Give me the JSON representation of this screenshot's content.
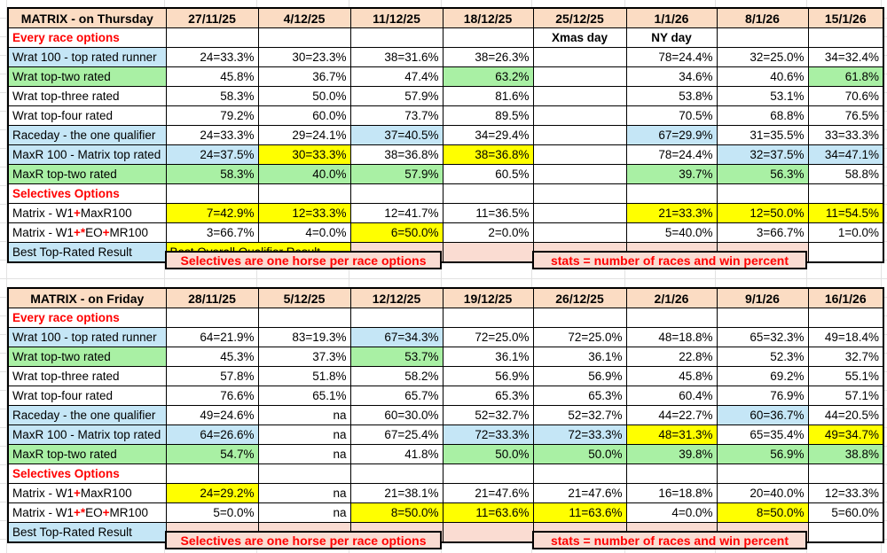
{
  "colors": {
    "peach": "#fbdcc3",
    "pink": "#fadcd2",
    "blue": "#c5e6f6",
    "green": "#a9f0a4",
    "yellow": "#ffff00",
    "red": "#ff0000",
    "grid": "#e2e2e2"
  },
  "tables": [
    {
      "title": "MATRIX - on Thursday",
      "dates": [
        "27/11/25",
        "4/12/25",
        "11/12/25",
        "18/12/25",
        "25/12/25",
        "1/1/26",
        "8/1/26",
        "15/1/26"
      ],
      "rows": [
        {
          "type": "section",
          "label": [
            {
              "t": "Every race options",
              "c": "red"
            }
          ],
          "cells": [
            {},
            {},
            {},
            {},
            {
              "t": "Xmas day",
              "bold": true
            },
            {
              "t": "NY day",
              "bold": true
            },
            {},
            {}
          ]
        },
        {
          "type": "data",
          "labelBg": "blue",
          "label": [
            {
              "t": "Wrat 100 - top rated runner"
            }
          ],
          "cells": [
            {
              "t": "24=33.3%"
            },
            {
              "t": "30=23.3%"
            },
            {
              "t": "38=31.6%"
            },
            {
              "t": "38=26.3%"
            },
            {},
            {
              "t": "78=24.4%"
            },
            {
              "t": "32=25.0%"
            },
            {
              "t": "34=32.4%"
            }
          ]
        },
        {
          "type": "data",
          "labelBg": "green",
          "label": [
            {
              "t": "Wrat top-two rated"
            }
          ],
          "cells": [
            {
              "t": "45.8%"
            },
            {
              "t": "36.7%"
            },
            {
              "t": "47.4%"
            },
            {
              "t": "63.2%",
              "bg": "green"
            },
            {},
            {
              "t": "34.6%"
            },
            {
              "t": "40.6%"
            },
            {
              "t": "61.8%",
              "bg": "green"
            }
          ]
        },
        {
          "type": "data",
          "label": [
            {
              "t": "Wrat top-three rated"
            }
          ],
          "cells": [
            {
              "t": "58.3%"
            },
            {
              "t": "50.0%"
            },
            {
              "t": "57.9%"
            },
            {
              "t": "81.6%"
            },
            {},
            {
              "t": "53.8%"
            },
            {
              "t": "53.1%"
            },
            {
              "t": "70.6%"
            }
          ]
        },
        {
          "type": "data",
          "label": [
            {
              "t": "Wrat top-four rated"
            }
          ],
          "cells": [
            {
              "t": "79.2%"
            },
            {
              "t": "60.0%"
            },
            {
              "t": "73.7%"
            },
            {
              "t": "89.5%"
            },
            {},
            {
              "t": "70.5%"
            },
            {
              "t": "68.8%"
            },
            {
              "t": "76.5%"
            }
          ]
        },
        {
          "type": "data",
          "labelBg": "blue",
          "label": [
            {
              "t": "Raceday - the one qualifier"
            }
          ],
          "cells": [
            {
              "t": "24=33.3%"
            },
            {
              "t": "29=24.1%"
            },
            {
              "t": "37=40.5%",
              "bg": "blue"
            },
            {
              "t": "34=29.4%"
            },
            {},
            {
              "t": "67=29.9%",
              "bg": "blue"
            },
            {
              "t": "31=35.5%"
            },
            {
              "t": "33=33.3%"
            }
          ]
        },
        {
          "type": "data",
          "labelBg": "blue",
          "label": [
            {
              "t": "MaxR 100 - Matrix top rated"
            }
          ],
          "cells": [
            {
              "t": "24=37.5%",
              "bg": "blue"
            },
            {
              "t": "30=33.3%",
              "bg": "yellow"
            },
            {
              "t": "38=36.8%"
            },
            {
              "t": "38=36.8%",
              "bg": "yellow"
            },
            {},
            {
              "t": "78=24.4%"
            },
            {
              "t": "32=37.5%",
              "bg": "blue"
            },
            {
              "t": "34=47.1%",
              "bg": "blue"
            }
          ]
        },
        {
          "type": "data",
          "labelBg": "green",
          "label": [
            {
              "t": "MaxR top-two rated"
            }
          ],
          "cells": [
            {
              "t": "58.3%",
              "bg": "green"
            },
            {
              "t": "40.0%",
              "bg": "green"
            },
            {
              "t": "57.9%",
              "bg": "green"
            },
            {
              "t": "60.5%"
            },
            {},
            {
              "t": "39.7%",
              "bg": "green"
            },
            {
              "t": "56.3%",
              "bg": "green"
            },
            {
              "t": "58.8%"
            }
          ]
        },
        {
          "type": "section",
          "label": [
            {
              "t": "Selectives Options",
              "c": "red"
            }
          ],
          "cells": [
            {},
            {},
            {},
            {},
            {},
            {},
            {},
            {}
          ]
        },
        {
          "type": "data",
          "label": [
            {
              "t": "Matrix - W1"
            },
            {
              "t": "+",
              "c": "red"
            },
            {
              "t": "MaxR100"
            }
          ],
          "cells": [
            {
              "t": "7=42.9%",
              "bg": "yellow"
            },
            {
              "t": "12=33.3%",
              "bg": "yellow"
            },
            {
              "t": "12=41.7%"
            },
            {
              "t": "11=36.5%"
            },
            {},
            {
              "t": "21=33.3%",
              "bg": "yellow"
            },
            {
              "t": "12=50.0%",
              "bg": "yellow"
            },
            {
              "t": "11=54.5%",
              "bg": "yellow"
            }
          ]
        },
        {
          "type": "data",
          "label": [
            {
              "t": "Matrix - W1"
            },
            {
              "t": "+*",
              "c": "red"
            },
            {
              "t": "EO"
            },
            {
              "t": "+",
              "c": "red"
            },
            {
              "t": "MR100"
            }
          ],
          "cells": [
            {
              "t": "3=66.7%"
            },
            {
              "t": "4=0.0%"
            },
            {
              "t": "6=50.0%",
              "bg": "yellow"
            },
            {
              "t": "2=0.0%"
            },
            {},
            {
              "t": "5=40.0%"
            },
            {
              "t": "3=66.7%"
            },
            {
              "t": "1=0.0%"
            }
          ]
        },
        {
          "type": "best",
          "labelBg": "blue",
          "label": [
            {
              "t": "Best Top-Rated Result"
            }
          ],
          "cells": [
            {
              "t": "Best Overall Qualifier Result",
              "bg": "yellow",
              "span": 2,
              "al": "left"
            },
            {
              "bg": "pink"
            },
            {
              "bg": "pink"
            },
            {
              "bg": "pink"
            },
            {
              "bg": "pink"
            },
            {
              "bg": "pink"
            },
            {}
          ]
        },
        {
          "type": "banner",
          "cells": [
            {
              "none": true
            },
            {
              "t": "Selectives are one horse per race options",
              "span": 3,
              "bg": "pink",
              "c": "red"
            },
            {
              "none": true
            },
            {
              "t": "stats = number of races and win percent",
              "span": 3,
              "bg": "pink",
              "c": "red"
            },
            {
              "none": true
            }
          ]
        }
      ]
    },
    {
      "title": "MATRIX - on Friday",
      "dates": [
        "28/11/25",
        "5/12/25",
        "12/12/25",
        "19/12/25",
        "26/12/25",
        "2/1/26",
        "9/1/26",
        "16/1/26"
      ],
      "rows": [
        {
          "type": "section",
          "label": [
            {
              "t": "Every race options",
              "c": "red"
            }
          ],
          "cells": [
            {},
            {},
            {},
            {},
            {},
            {},
            {},
            {}
          ]
        },
        {
          "type": "data",
          "labelBg": "blue",
          "label": [
            {
              "t": "Wrat 100 - top rated runner"
            }
          ],
          "cells": [
            {
              "t": "64=21.9%"
            },
            {
              "t": "83=19.3%"
            },
            {
              "t": "67=34.3%",
              "bg": "blue"
            },
            {
              "t": "72=25.0%"
            },
            {
              "t": "72=25.0%"
            },
            {
              "t": "48=18.8%"
            },
            {
              "t": "65=32.3%"
            },
            {
              "t": "49=18.4%"
            }
          ]
        },
        {
          "type": "data",
          "labelBg": "green",
          "label": [
            {
              "t": "Wrat top-two rated"
            }
          ],
          "cells": [
            {
              "t": "45.3%"
            },
            {
              "t": "37.3%"
            },
            {
              "t": "53.7%",
              "bg": "green"
            },
            {
              "t": "36.1%"
            },
            {
              "t": "36.1%"
            },
            {
              "t": "22.8%"
            },
            {
              "t": "52.3%"
            },
            {
              "t": "32.7%"
            }
          ]
        },
        {
          "type": "data",
          "label": [
            {
              "t": "Wrat top-three rated"
            }
          ],
          "cells": [
            {
              "t": "57.8%"
            },
            {
              "t": "51.8%"
            },
            {
              "t": "58.2%"
            },
            {
              "t": "56.9%"
            },
            {
              "t": "56.9%"
            },
            {
              "t": "45.8%"
            },
            {
              "t": "69.2%"
            },
            {
              "t": "55.1%"
            }
          ]
        },
        {
          "type": "data",
          "label": [
            {
              "t": "Wrat top-four rated"
            }
          ],
          "cells": [
            {
              "t": "76.6%"
            },
            {
              "t": "65.1%"
            },
            {
              "t": "65.7%"
            },
            {
              "t": "65.3%"
            },
            {
              "t": "65.3%"
            },
            {
              "t": "60.4%"
            },
            {
              "t": "76.9%"
            },
            {
              "t": "57.1%"
            }
          ]
        },
        {
          "type": "data",
          "labelBg": "blue",
          "label": [
            {
              "t": "Raceday - the one qualifier"
            }
          ],
          "cells": [
            {
              "t": "49=24.6%"
            },
            {
              "t": "na"
            },
            {
              "t": "60=30.0%"
            },
            {
              "t": "52=32.7%"
            },
            {
              "t": "52=32.7%"
            },
            {
              "t": "44=22.7%"
            },
            {
              "t": "60=36.7%",
              "bg": "blue"
            },
            {
              "t": "44=20.5%"
            }
          ]
        },
        {
          "type": "data",
          "labelBg": "blue",
          "label": [
            {
              "t": "MaxR 100 - Matrix top rated"
            }
          ],
          "cells": [
            {
              "t": "64=26.6%",
              "bg": "blue"
            },
            {
              "t": "na"
            },
            {
              "t": "67=25.4%"
            },
            {
              "t": "72=33.3%",
              "bg": "blue"
            },
            {
              "t": "72=33.3%",
              "bg": "blue"
            },
            {
              "t": "48=31.3%",
              "bg": "yellow"
            },
            {
              "t": "65=35.4%"
            },
            {
              "t": "49=34.7%",
              "bg": "yellow"
            }
          ]
        },
        {
          "type": "data",
          "labelBg": "green",
          "label": [
            {
              "t": "MaxR top-two rated"
            }
          ],
          "cells": [
            {
              "t": "54.7%",
              "bg": "green"
            },
            {
              "t": "na"
            },
            {
              "t": "41.8%"
            },
            {
              "t": "50.0%",
              "bg": "green"
            },
            {
              "t": "50.0%",
              "bg": "green"
            },
            {
              "t": "39.8%",
              "bg": "green"
            },
            {
              "t": "56.9%",
              "bg": "green"
            },
            {
              "t": "38.8%",
              "bg": "green"
            }
          ]
        },
        {
          "type": "section",
          "label": [
            {
              "t": "Selectives Options",
              "c": "red"
            }
          ],
          "cells": [
            {},
            {},
            {},
            {},
            {},
            {},
            {},
            {}
          ]
        },
        {
          "type": "data",
          "label": [
            {
              "t": "Matrix - W1"
            },
            {
              "t": "+",
              "c": "red"
            },
            {
              "t": "MaxR100"
            }
          ],
          "cells": [
            {
              "t": "24=29.2%",
              "bg": "yellow"
            },
            {
              "t": "na"
            },
            {
              "t": "21=38.1%"
            },
            {
              "t": "21=47.6%"
            },
            {
              "t": "21=47.6%"
            },
            {
              "t": "16=18.8%"
            },
            {
              "t": "20=40.0%"
            },
            {
              "t": "12=33.3%"
            }
          ]
        },
        {
          "type": "data",
          "label": [
            {
              "t": "Matrix - W1"
            },
            {
              "t": "+*",
              "c": "red"
            },
            {
              "t": "EO"
            },
            {
              "t": "+",
              "c": "red"
            },
            {
              "t": "MR100"
            }
          ],
          "cells": [
            {
              "t": "5=0.0%"
            },
            {
              "t": "na"
            },
            {
              "t": "8=50.0%",
              "bg": "yellow"
            },
            {
              "t": "11=63.6%",
              "bg": "yellow"
            },
            {
              "t": "11=63.6%",
              "bg": "yellow"
            },
            {
              "t": "4=0.0%"
            },
            {
              "t": "8=50.0%",
              "bg": "yellow"
            },
            {
              "t": "5=60.0%"
            }
          ]
        },
        {
          "type": "best",
          "labelBg": "blue",
          "label": [
            {
              "t": "Best Top-Rated Result"
            }
          ],
          "cells": [
            {
              "bg": "pink"
            },
            {
              "bg": "pink"
            },
            {
              "bg": "pink"
            },
            {
              "bg": "pink"
            },
            {
              "bg": "pink"
            },
            {
              "bg": "pink"
            },
            {
              "bg": "pink"
            },
            {}
          ]
        },
        {
          "type": "banner",
          "cells": [
            {
              "none": true
            },
            {
              "t": "Selectives are one horse per race options",
              "span": 3,
              "bg": "pink",
              "c": "red"
            },
            {
              "none": true
            },
            {
              "t": "stats = number of races and win percent",
              "span": 3,
              "bg": "pink",
              "c": "red"
            },
            {
              "none": true
            }
          ]
        }
      ]
    }
  ]
}
